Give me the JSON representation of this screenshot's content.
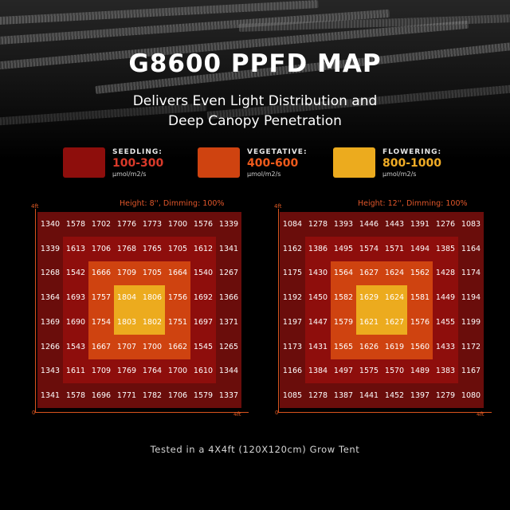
{
  "title": "G8600 PPFD MAP",
  "subtitle_line1": "Delivers Even Light Distribution and",
  "subtitle_line2": "Deep Canopy Penetration",
  "colors": {
    "seedling": "#8e0e0c",
    "vegetative": "#cf4310",
    "flowering": "#ecab1e",
    "ring_outer": "#6a0d0b",
    "ring_second": "#8e0e0c",
    "ring_third": "#cf4310",
    "ring_center": "#ecab1e",
    "accent": "#e0562a"
  },
  "legend": [
    {
      "name": "SEEDLING:",
      "range": "100-300",
      "unit": "μmol/m2/s",
      "color": "#8e0e0c",
      "range_color": "#d93a2a"
    },
    {
      "name": "VEGETATIVE:",
      "range": "400-600",
      "unit": "μmol/m2/s",
      "color": "#cf4310",
      "range_color": "#ee5a1c"
    },
    {
      "name": "FLOWERING:",
      "range": "800-1000",
      "unit": "μmol/m2/s",
      "color": "#ecab1e",
      "range_color": "#f0ac26"
    }
  ],
  "panels": [
    {
      "heading": "Height: 8'', Dimming: 100%",
      "axis_y_top": "4ft",
      "axis_origin": "0",
      "axis_x_right": "4ft",
      "grid": [
        [
          "1340",
          "1578",
          "1702",
          "1776",
          "1773",
          "1700",
          "1576",
          "1339"
        ],
        [
          "1339",
          "1613",
          "1706",
          "1768",
          "1765",
          "1705",
          "1612",
          "1341"
        ],
        [
          "1268",
          "1542",
          "1666",
          "1709",
          "1705",
          "1664",
          "1540",
          "1267"
        ],
        [
          "1364",
          "1693",
          "1757",
          "1804",
          "1806",
          "1756",
          "1692",
          "1366"
        ],
        [
          "1369",
          "1690",
          "1754",
          "1803",
          "1802",
          "1751",
          "1697",
          "1371"
        ],
        [
          "1266",
          "1543",
          "1667",
          "1707",
          "1700",
          "1662",
          "1545",
          "1265"
        ],
        [
          "1343",
          "1611",
          "1709",
          "1769",
          "1764",
          "1700",
          "1610",
          "1344"
        ],
        [
          "1341",
          "1578",
          "1696",
          "1771",
          "1782",
          "1706",
          "1579",
          "1337"
        ]
      ]
    },
    {
      "heading": "Height: 12'', Dimming: 100%",
      "axis_y_top": "4ft",
      "axis_origin": "0",
      "axis_x_right": "4ft",
      "grid": [
        [
          "1084",
          "1278",
          "1393",
          "1446",
          "1443",
          "1391",
          "1276",
          "1083"
        ],
        [
          "1162",
          "1386",
          "1495",
          "1574",
          "1571",
          "1494",
          "1385",
          "1164"
        ],
        [
          "1175",
          "1430",
          "1564",
          "1627",
          "1624",
          "1562",
          "1428",
          "1174"
        ],
        [
          "1192",
          "1450",
          "1582",
          "1629",
          "1624",
          "1581",
          "1449",
          "1194"
        ],
        [
          "1197",
          "1447",
          "1579",
          "1621",
          "1627",
          "1576",
          "1455",
          "1199"
        ],
        [
          "1173",
          "1431",
          "1565",
          "1626",
          "1619",
          "1560",
          "1433",
          "1172"
        ],
        [
          "1166",
          "1384",
          "1497",
          "1575",
          "1570",
          "1489",
          "1383",
          "1167"
        ],
        [
          "1085",
          "1278",
          "1387",
          "1441",
          "1452",
          "1397",
          "1279",
          "1080"
        ]
      ]
    }
  ],
  "footer": "Tested in a 4X4ft (120X120cm) Grow Tent"
}
